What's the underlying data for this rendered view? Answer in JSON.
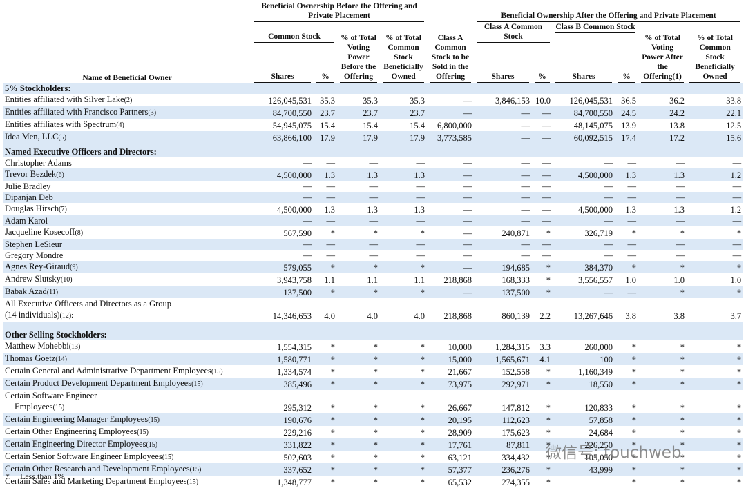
{
  "header": {
    "group_before": "Beneficial Ownership Before the Offering and Private Placement",
    "group_after": "Beneficial Ownership After the Offering and Private Placement",
    "common_stock": "Common Stock",
    "voting_before": "% of Total Voting Power Before the Offering",
    "owned_before": "% of Total Common Stock Beneficially Owned",
    "class_a_sold": "Class A Common Stock to be Sold in the Offering",
    "class_a": "Class A Common Stock",
    "class_b": "Class B Common Stock",
    "voting_after": "% of Total Voting Power After the Offering",
    "voting_after_note": "(1)",
    "owned_after": "% of Total Common Stock Beneficially Owned",
    "name": "Name of Beneficial Owner",
    "shares": "Shares",
    "pct": "%"
  },
  "sections": [
    {
      "title": "5% Stockholders:",
      "rows": [
        {
          "name": "Entities affiliated with Silver Lake",
          "note": "(2)",
          "cells": [
            "126,045,531",
            "35.3",
            "35.3",
            "35.3",
            "—",
            "3,846,153",
            "10.0",
            "126,045,531",
            "36.5",
            "36.2",
            "33.8"
          ]
        },
        {
          "name": "Entities affiliated with Francisco Partners",
          "note": "(3)",
          "cells": [
            "84,700,550",
            "23.7",
            "23.7",
            "23.7",
            "—",
            "—",
            "—",
            "84,700,550",
            "24.5",
            "24.2",
            "22.1"
          ]
        },
        {
          "name": "Entities affiliates with Spectrum",
          "note": "(4)",
          "cells": [
            "54,945,075",
            "15.4",
            "15.4",
            "15.4",
            "6,800,000",
            "—",
            "—",
            "48,145,075",
            "13.9",
            "13.8",
            "12.5"
          ]
        },
        {
          "name": "Idea Men, LLC",
          "note": "(5)",
          "cells": [
            "63,866,100",
            "17.9",
            "17.9",
            "17.9",
            "3,773,585",
            "—",
            "—",
            "60,092,515",
            "17.4",
            "17.2",
            "15.6"
          ]
        }
      ]
    },
    {
      "title": "Named Executive Officers and Directors:",
      "rows": [
        {
          "name": "Christopher Adams",
          "cells": [
            "—",
            "—",
            "—",
            "—",
            "—",
            "—",
            "—",
            "—",
            "—",
            "—",
            "—"
          ]
        },
        {
          "name": "Trevor Bezdek",
          "note": "(6)",
          "cells": [
            "4,500,000",
            "1.3",
            "1.3",
            "1.3",
            "—",
            "—",
            "—",
            "4,500,000",
            "1.3",
            "1.3",
            "1.2"
          ]
        },
        {
          "name": "Julie Bradley",
          "cells": [
            "—",
            "—",
            "—",
            "—",
            "—",
            "—",
            "—",
            "—",
            "—",
            "—",
            "—"
          ]
        },
        {
          "name": "Dipanjan Deb",
          "cells": [
            "—",
            "—",
            "—",
            "—",
            "—",
            "—",
            "—",
            "—",
            "—",
            "—",
            "—"
          ]
        },
        {
          "name": "Douglas Hirsch",
          "note": "(7)",
          "cells": [
            "4,500,000",
            "1.3",
            "1.3",
            "1.3",
            "—",
            "—",
            "—",
            "4,500,000",
            "1.3",
            "1.3",
            "1.2"
          ]
        },
        {
          "name": "Adam Karol",
          "cells": [
            "—",
            "—",
            "—",
            "—",
            "—",
            "—",
            "—",
            "—",
            "—",
            "—",
            "—"
          ]
        },
        {
          "name": "Jacqueline Kosecoff",
          "note": "(8)",
          "cells": [
            "567,590",
            "*",
            "*",
            "*",
            "—",
            "240,871",
            "*",
            "326,719",
            "*",
            "*",
            "*"
          ]
        },
        {
          "name": "Stephen LeSieur",
          "cells": [
            "—",
            "—",
            "—",
            "—",
            "—",
            "—",
            "—",
            "—",
            "—",
            "—",
            "—"
          ]
        },
        {
          "name": "Gregory Mondre",
          "cells": [
            "—",
            "—",
            "—",
            "—",
            "—",
            "—",
            "—",
            "—",
            "—",
            "—",
            "—"
          ]
        },
        {
          "name": "Agnes Rey-Giraud",
          "note": "(9)",
          "cells": [
            "579,055",
            "*",
            "*",
            "*",
            "—",
            "194,685",
            "*",
            "384,370",
            "*",
            "*",
            "*"
          ]
        },
        {
          "name": "Andrew Slutsky",
          "note": "(10)",
          "cells": [
            "3,943,758",
            "1.1",
            "1.1",
            "1.1",
            "218,868",
            "168,333",
            "*",
            "3,556,557",
            "1.0",
            "1.0",
            "1.0"
          ]
        },
        {
          "name": "Babak Azad",
          "note": "(11)",
          "cells": [
            "137,500",
            "*",
            "*",
            "*",
            "—",
            "137,500",
            "*",
            "—",
            "—",
            "*",
            "*"
          ]
        },
        {
          "name": "All Executive Officers and Directors as a Group",
          "name2": "(14 individuals)",
          "note": "(12):",
          "cells": [
            "14,346,653",
            "4.0",
            "4.0",
            "4.0",
            "218,868",
            "860,139",
            "2.2",
            "13,267,646",
            "3.8",
            "3.8",
            "3.7"
          ]
        }
      ]
    },
    {
      "title": "Other Selling Stockholders:",
      "rows": [
        {
          "name": "Matthew Mohebbi",
          "note": "(13)",
          "cells": [
            "1,554,315",
            "*",
            "*",
            "*",
            "10,000",
            "1,284,315",
            "3.3",
            "260,000",
            "*",
            "*",
            "*"
          ]
        },
        {
          "name": "Thomas Goetz",
          "note": "(14)",
          "cells": [
            "1,580,771",
            "*",
            "*",
            "*",
            "15,000",
            "1,565,671",
            "4.1",
            "100",
            "*",
            "*",
            "*"
          ]
        },
        {
          "name": "Certain General and Administrative Department Employees",
          "note": "(15)",
          "cells": [
            "1,334,574",
            "*",
            "*",
            "*",
            "21,667",
            "152,558",
            "*",
            "1,160,349",
            "*",
            "*",
            "*"
          ]
        },
        {
          "name": "Certain Product Development Department Employees",
          "note": "(15)",
          "cells": [
            "385,496",
            "*",
            "*",
            "*",
            "73,975",
            "292,971",
            "*",
            "18,550",
            "*",
            "*",
            "*"
          ]
        },
        {
          "name": "Certain Software Engineer",
          "name2": "Employees",
          "note": "(15)",
          "cells": [
            "295,312",
            "*",
            "*",
            "*",
            "26,667",
            "147,812",
            "*",
            "120,833",
            "*",
            "*",
            "*"
          ]
        },
        {
          "name": "Certain Engineering Manager Employees",
          "note": "(15)",
          "cells": [
            "190,676",
            "*",
            "*",
            "*",
            "20,195",
            "112,623",
            "*",
            "57,858",
            "*",
            "*",
            "*"
          ]
        },
        {
          "name": "Certain Other Engineering Employees",
          "note": "(15)",
          "cells": [
            "229,216",
            "*",
            "*",
            "*",
            "28,909",
            "175,623",
            "*",
            "24,684",
            "*",
            "*",
            "*"
          ]
        },
        {
          "name": "Certain Engineering Director Employees",
          "note": "(15)",
          "cells": [
            "331,822",
            "*",
            "*",
            "*",
            "17,761",
            "87,811",
            "*",
            "226,250",
            "*",
            "*",
            "*"
          ]
        },
        {
          "name": "Certain Senior Software Engineer Employees",
          "note": "(15)",
          "cells": [
            "502,603",
            "*",
            "*",
            "*",
            "63,121",
            "334,432",
            "*",
            "105,050",
            "*",
            "*",
            "*"
          ]
        },
        {
          "name": "Certain Other Research and Development Employees",
          "note": "(15)",
          "cells": [
            "337,652",
            "*",
            "*",
            "*",
            "57,377",
            "236,276",
            "*",
            "43,999",
            "*",
            "*",
            "*"
          ]
        },
        {
          "name": "Certain Sales and Marketing Department Employees",
          "note": "(15)",
          "cells": [
            "1,348,777",
            "*",
            "*",
            "*",
            "65,532",
            "274,355",
            "*",
            null,
            "*",
            "*",
            "*"
          ]
        }
      ]
    }
  ],
  "footnote": {
    "mark": "*",
    "text": "Less than 1%"
  },
  "watermark": "微信号: touchweb"
}
